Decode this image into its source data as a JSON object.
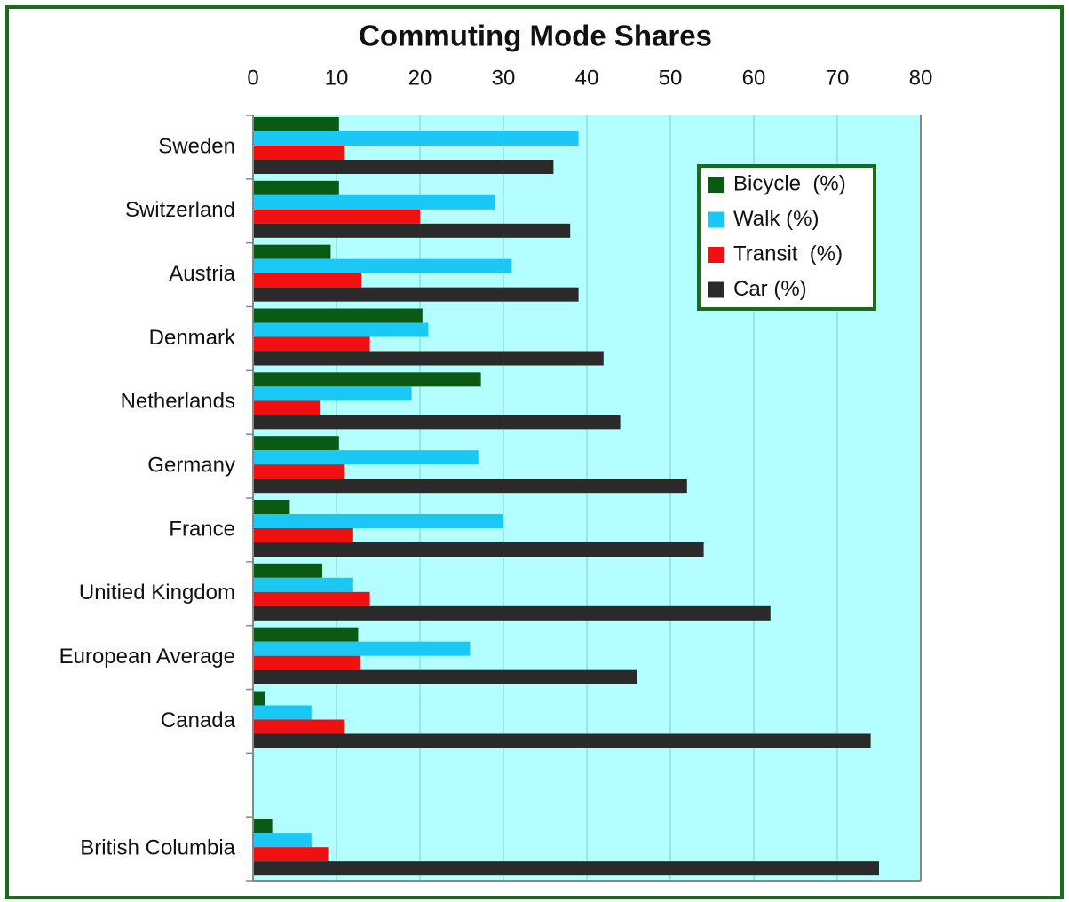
{
  "chart_data": {
    "type": "hbar",
    "title": "Commuting Mode Shares",
    "categories": [
      "Sweden",
      "Switzerland",
      "Austria",
      "Denmark",
      "Netherlands",
      "Germany",
      "France",
      "Unitied Kingdom",
      "European Average",
      "Canada",
      null,
      "British Columbia"
    ],
    "series": [
      {
        "name": "Bicycle  (%)",
        "color": "#0b5a14",
        "values": [
          10.3,
          10.3,
          9.3,
          20.3,
          27.3,
          10.3,
          4.4,
          8.3,
          12.6,
          1.4,
          null,
          2.3
        ]
      },
      {
        "name": "Walk (%)",
        "color": "#1ac8f5",
        "values": [
          39,
          29,
          31,
          21,
          19,
          27,
          30,
          12,
          26,
          7,
          null,
          7
        ]
      },
      {
        "name": "Transit  (%)",
        "color": "#f01010",
        "values": [
          11,
          20,
          13,
          14,
          8,
          11,
          12,
          14,
          12.9,
          11,
          null,
          9
        ]
      },
      {
        "name": "Car (%)",
        "color": "#2a2a2a",
        "values": [
          36,
          38,
          39,
          42,
          44,
          52,
          54,
          62,
          46,
          74,
          null,
          75
        ]
      }
    ],
    "xlim": [
      0,
      80
    ],
    "xticks": [
      0,
      10,
      20,
      30,
      40,
      50,
      60,
      70,
      80
    ],
    "grid": true,
    "legend": "upper right"
  }
}
